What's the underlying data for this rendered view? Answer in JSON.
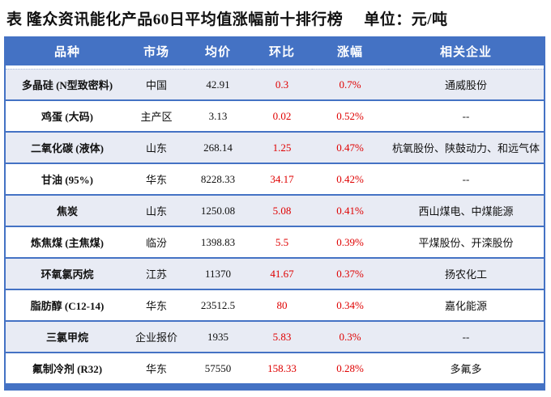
{
  "title": "表 隆众资讯能化产品60日平均值涨幅前十排行榜",
  "unit_label": "单位：元/吨",
  "colors": {
    "header_bg": "#4472C4",
    "stripe_bg": "#E8EBF4",
    "border_blue": "#4472C4",
    "highlight_red": "#DF0000"
  },
  "table": {
    "columns": [
      {
        "key": "variety",
        "label": "品种"
      },
      {
        "key": "market",
        "label": "市场"
      },
      {
        "key": "avg_price",
        "label": "均价"
      },
      {
        "key": "chain",
        "label": "环比"
      },
      {
        "key": "gain",
        "label": "涨幅"
      },
      {
        "key": "companies",
        "label": "相关企业"
      }
    ],
    "rows": [
      {
        "variety": "多晶硅 (N型致密料)",
        "market": "中国",
        "avg_price": "42.91",
        "chain": "0.3",
        "gain": "0.7%",
        "companies": "通威股份"
      },
      {
        "variety": "鸡蛋 (大码)",
        "market": "主产区",
        "avg_price": "3.13",
        "chain": "0.02",
        "gain": "0.52%",
        "companies": "--"
      },
      {
        "variety": "二氧化碳 (液体)",
        "market": "山东",
        "avg_price": "268.14",
        "chain": "1.25",
        "gain": "0.47%",
        "companies": "杭氧股份、陕鼓动力、和远气体"
      },
      {
        "variety": "甘油 (95%)",
        "market": "华东",
        "avg_price": "8228.33",
        "chain": "34.17",
        "gain": "0.42%",
        "companies": "--"
      },
      {
        "variety": "焦炭",
        "market": "山东",
        "avg_price": "1250.08",
        "chain": "5.08",
        "gain": "0.41%",
        "companies": "西山煤电、中煤能源"
      },
      {
        "variety": "炼焦煤 (主焦煤)",
        "market": "临汾",
        "avg_price": "1398.83",
        "chain": "5.5",
        "gain": "0.39%",
        "companies": "平煤股份、开滦股份"
      },
      {
        "variety": "环氧氯丙烷",
        "market": "江苏",
        "avg_price": "11370",
        "chain": "41.67",
        "gain": "0.37%",
        "companies": "扬农化工"
      },
      {
        "variety": "脂肪醇 (C12-14)",
        "market": "华东",
        "avg_price": "23512.5",
        "chain": "80",
        "gain": "0.34%",
        "companies": "嘉化能源"
      },
      {
        "variety": "三氯甲烷",
        "market": "企业报价",
        "avg_price": "1935",
        "chain": "5.83",
        "gain": "0.3%",
        "companies": "--"
      },
      {
        "variety": "氟制冷剂 (R32)",
        "market": "华东",
        "avg_price": "57550",
        "chain": "158.33",
        "gain": "0.28%",
        "companies": "多氟多"
      }
    ]
  }
}
